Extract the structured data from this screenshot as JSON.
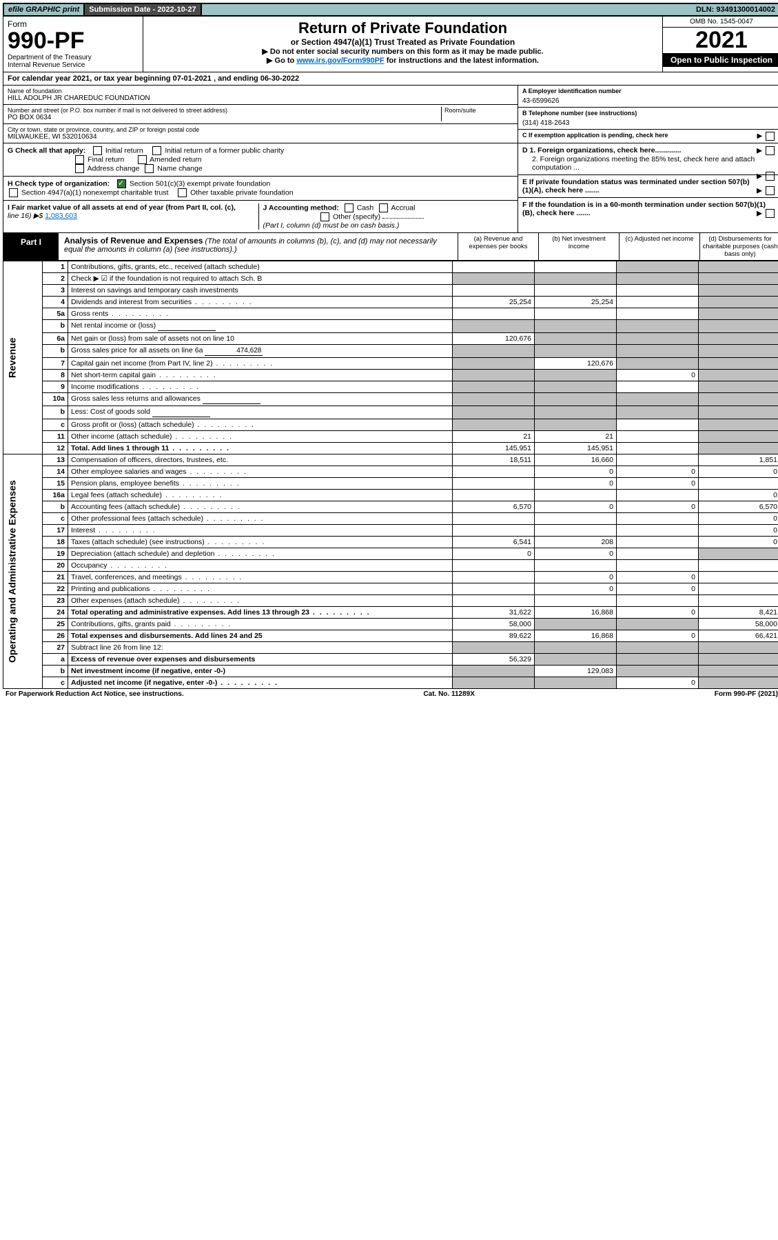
{
  "topbar": {
    "efile": "efile GRAPHIC print",
    "submission": "Submission Date - 2022-10-27",
    "dln": "DLN: 93491300014002"
  },
  "header": {
    "form_word": "Form",
    "form_no": "990-PF",
    "dept": "Department of the Treasury\nInternal Revenue Service",
    "title": "Return of Private Foundation",
    "subtitle": "or Section 4947(a)(1) Trust Treated as Private Foundation",
    "note1": "▶ Do not enter social security numbers on this form as it may be made public.",
    "note2_pre": "▶ Go to ",
    "note2_link": "www.irs.gov/Form990PF",
    "note2_post": " for instructions and the latest information.",
    "omb": "OMB No. 1545-0047",
    "year": "2021",
    "open": "Open to Public Inspection"
  },
  "cal_year": "For calendar year 2021, or tax year beginning 07-01-2021                           , and ending 06-30-2022",
  "info": {
    "name_lbl": "Name of foundation",
    "name": "HILL ADOLPH JR CHAREDUC FOUNDATION",
    "addr_lbl": "Number and street (or P.O. box number if mail is not delivered to street address)",
    "room_lbl": "Room/suite",
    "addr": "PO BOX 0634",
    "city_lbl": "City or town, state or province, country, and ZIP or foreign postal code",
    "city": "MILWAUKEE, WI  532010634",
    "ein_lbl": "A Employer identification number",
    "ein": "43-6599626",
    "tel_lbl": "B Telephone number (see instructions)",
    "tel": "(314) 418-2643",
    "c_lbl": "C If exemption application is pending, check here",
    "d1": "D 1. Foreign organizations, check here.............",
    "d2": "2. Foreign organizations meeting the 85% test, check here and attach computation ...",
    "e_lbl": "E  If private foundation status was terminated under section 507(b)(1)(A), check here .......",
    "f_lbl": "F  If the foundation is in a 60-month termination under section 507(b)(1)(B), check here ......."
  },
  "g": {
    "lbl": "G Check all that apply:",
    "initial": "Initial return",
    "initial_former": "Initial return of a former public charity",
    "final": "Final return",
    "amended": "Amended return",
    "addr_change": "Address change",
    "name_change": "Name change"
  },
  "h": {
    "lbl": "H Check type of organization:",
    "501c3": "Section 501(c)(3) exempt private foundation",
    "4947": "Section 4947(a)(1) nonexempt charitable trust",
    "other_tax": "Other taxable private foundation"
  },
  "i": {
    "lbl": "I Fair market value of all assets at end of year (from Part II, col. (c),",
    "line16": "line 16) ▶$ ",
    "val": "1,083,603"
  },
  "j": {
    "lbl": "J Accounting method:",
    "cash": "Cash",
    "accrual": "Accrual",
    "other": "Other (specify)",
    "note": "(Part I, column (d) must be on cash basis.)"
  },
  "part1": {
    "label": "Part I",
    "title": "Analysis of Revenue and Expenses",
    "title_note": " (The total of amounts in columns (b), (c), and (d) may not necessarily equal the amounts in column (a) (see instructions).)",
    "col_a": "(a)   Revenue and expenses per books",
    "col_b": "(b)   Net investment income",
    "col_c": "(c)  Adjusted net income",
    "col_d": "(d)  Disbursements for charitable purposes (cash basis only)"
  },
  "side": {
    "revenue": "Revenue",
    "expenses": "Operating and Administrative Expenses"
  },
  "rows": [
    {
      "n": "1",
      "d": "Contributions, gifts, grants, etc., received (attach schedule)",
      "a": "",
      "b": "",
      "c": "grey",
      "dcol": "grey"
    },
    {
      "n": "2",
      "d": "Check ▶ ☑ if the foundation is not required to attach Sch. B",
      "a": "grey",
      "b": "grey",
      "c": "grey",
      "dcol": "grey",
      "bold_not": true
    },
    {
      "n": "3",
      "d": "Interest on savings and temporary cash investments",
      "a": "",
      "b": "",
      "c": "",
      "dcol": "grey"
    },
    {
      "n": "4",
      "d": "Dividends and interest from securities",
      "a": "25,254",
      "b": "25,254",
      "c": "",
      "dcol": "grey",
      "dots": true
    },
    {
      "n": "5a",
      "d": "Gross rents",
      "a": "",
      "b": "",
      "c": "",
      "dcol": "grey",
      "dots": true
    },
    {
      "n": "b",
      "d": "Net rental income or (loss)",
      "a": "grey",
      "b": "grey",
      "c": "grey",
      "dcol": "grey",
      "inline": true
    },
    {
      "n": "6a",
      "d": "Net gain or (loss) from sale of assets not on line 10",
      "a": "120,676",
      "b": "grey",
      "c": "grey",
      "dcol": "grey"
    },
    {
      "n": "b",
      "d": "Gross sales price for all assets on line 6a",
      "a": "grey",
      "b": "grey",
      "c": "grey",
      "dcol": "grey",
      "inline": true,
      "inline_val": "474,628"
    },
    {
      "n": "7",
      "d": "Capital gain net income (from Part IV, line 2)",
      "a": "grey",
      "b": "120,676",
      "c": "grey",
      "dcol": "grey",
      "dots": true
    },
    {
      "n": "8",
      "d": "Net short-term capital gain",
      "a": "grey",
      "b": "grey",
      "c": "0",
      "dcol": "grey",
      "dots": true
    },
    {
      "n": "9",
      "d": "Income modifications",
      "a": "grey",
      "b": "grey",
      "c": "",
      "dcol": "grey",
      "dots": true
    },
    {
      "n": "10a",
      "d": "Gross sales less returns and allowances",
      "a": "grey",
      "b": "grey",
      "c": "grey",
      "dcol": "grey",
      "inline": true
    },
    {
      "n": "b",
      "d": "Less: Cost of goods sold",
      "a": "grey",
      "b": "grey",
      "c": "grey",
      "dcol": "grey",
      "inline": true,
      "dots": true
    },
    {
      "n": "c",
      "d": "Gross profit or (loss) (attach schedule)",
      "a": "grey",
      "b": "grey",
      "c": "",
      "dcol": "grey",
      "dots": true
    },
    {
      "n": "11",
      "d": "Other income (attach schedule)",
      "a": "21",
      "b": "21",
      "c": "",
      "dcol": "grey",
      "dots": true
    },
    {
      "n": "12",
      "d": "Total. Add lines 1 through 11",
      "a": "145,951",
      "b": "145,951",
      "c": "",
      "dcol": "grey",
      "bold": true,
      "dots": true
    },
    {
      "n": "13",
      "d": "Compensation of officers, directors, trustees, etc.",
      "a": "18,511",
      "b": "16,660",
      "c": "",
      "dcol": "1,851"
    },
    {
      "n": "14",
      "d": "Other employee salaries and wages",
      "a": "",
      "b": "0",
      "c": "0",
      "dcol": "0",
      "dots": true
    },
    {
      "n": "15",
      "d": "Pension plans, employee benefits",
      "a": "",
      "b": "0",
      "c": "0",
      "dcol": "",
      "dots": true
    },
    {
      "n": "16a",
      "d": "Legal fees (attach schedule)",
      "a": "",
      "b": "",
      "c": "",
      "dcol": "0",
      "dots": true
    },
    {
      "n": "b",
      "d": "Accounting fees (attach schedule)",
      "a": "6,570",
      "b": "0",
      "c": "0",
      "dcol": "6,570",
      "dots": true
    },
    {
      "n": "c",
      "d": "Other professional fees (attach schedule)",
      "a": "",
      "b": "",
      "c": "",
      "dcol": "0",
      "dots": true
    },
    {
      "n": "17",
      "d": "Interest",
      "a": "",
      "b": "",
      "c": "",
      "dcol": "0",
      "dots": true
    },
    {
      "n": "18",
      "d": "Taxes (attach schedule) (see instructions)",
      "a": "6,541",
      "b": "208",
      "c": "",
      "dcol": "0",
      "dots": true
    },
    {
      "n": "19",
      "d": "Depreciation (attach schedule) and depletion",
      "a": "0",
      "b": "0",
      "c": "",
      "dcol": "grey",
      "dots": true
    },
    {
      "n": "20",
      "d": "Occupancy",
      "a": "",
      "b": "",
      "c": "",
      "dcol": "",
      "dots": true
    },
    {
      "n": "21",
      "d": "Travel, conferences, and meetings",
      "a": "",
      "b": "0",
      "c": "0",
      "dcol": "",
      "dots": true
    },
    {
      "n": "22",
      "d": "Printing and publications",
      "a": "",
      "b": "0",
      "c": "0",
      "dcol": "",
      "dots": true
    },
    {
      "n": "23",
      "d": "Other expenses (attach schedule)",
      "a": "",
      "b": "",
      "c": "",
      "dcol": "",
      "dots": true
    },
    {
      "n": "24",
      "d": "Total operating and administrative expenses. Add lines 13 through 23",
      "a": "31,622",
      "b": "16,868",
      "c": "0",
      "dcol": "8,421",
      "bold": true,
      "dots": true
    },
    {
      "n": "25",
      "d": "Contributions, gifts, grants paid",
      "a": "58,000",
      "b": "grey",
      "c": "grey",
      "dcol": "58,000",
      "dots": true
    },
    {
      "n": "26",
      "d": "Total expenses and disbursements. Add lines 24 and 25",
      "a": "89,622",
      "b": "16,868",
      "c": "0",
      "dcol": "66,421",
      "bold": true
    },
    {
      "n": "27",
      "d": "Subtract line 26 from line 12:",
      "a": "grey",
      "b": "grey",
      "c": "grey",
      "dcol": "grey"
    },
    {
      "n": "a",
      "d": "Excess of revenue over expenses and disbursements",
      "a": "56,329",
      "b": "grey",
      "c": "grey",
      "dcol": "grey",
      "bold": true
    },
    {
      "n": "b",
      "d": "Net investment income (if negative, enter -0-)",
      "a": "grey",
      "b": "129,083",
      "c": "grey",
      "dcol": "grey",
      "bold": true
    },
    {
      "n": "c",
      "d": "Adjusted net income (if negative, enter -0-)",
      "a": "grey",
      "b": "grey",
      "c": "0",
      "dcol": "grey",
      "bold": true,
      "dots": true
    }
  ],
  "footer": {
    "left": "For Paperwork Reduction Act Notice, see instructions.",
    "mid": "Cat. No. 11289X",
    "right": "Form 990-PF (2021)"
  }
}
